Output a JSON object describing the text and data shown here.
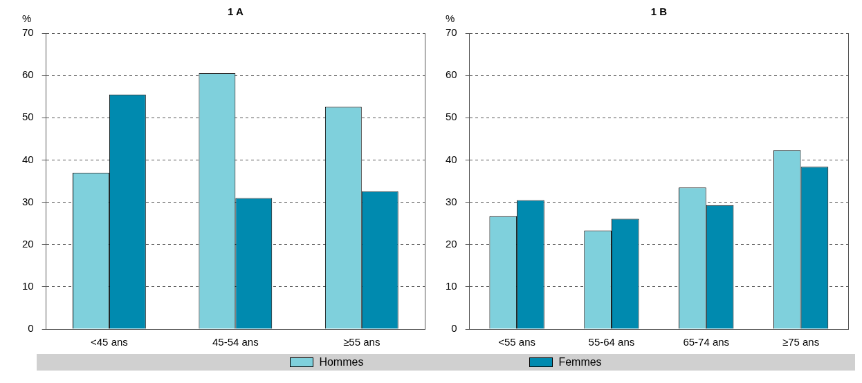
{
  "chart_data": [
    {
      "type": "bar",
      "title": "1 A",
      "ylabel": "%",
      "categories": [
        "<45 ans",
        "45-54 ans",
        "≥55 ans"
      ],
      "series": [
        {
          "name": "Hommes",
          "color": "#7fd0dc",
          "values": [
            37,
            60.5,
            52.6
          ]
        },
        {
          "name": "Femmes",
          "color": "#008aaf",
          "values": [
            55.5,
            31,
            32.6
          ]
        }
      ],
      "ylim": [
        0,
        70
      ],
      "yticks": [
        0,
        10,
        20,
        30,
        40,
        50,
        60,
        70
      ],
      "grid": "y",
      "legend": "bottom"
    },
    {
      "type": "bar",
      "title": "1 B",
      "ylabel": "%",
      "categories": [
        "<55 ans",
        "55-64 ans",
        "65-74 ans",
        "≥75 ans"
      ],
      "series": [
        {
          "color": "#7fd0dc",
          "values": [
            26.7,
            23.3,
            33.5,
            42.3
          ]
        },
        {
          "color": "#008aaf",
          "values": [
            30.5,
            26.1,
            29.3,
            38.4
          ]
        }
      ],
      "ylim": [
        0,
        70
      ],
      "yticks": [
        0,
        10,
        20,
        30,
        40,
        50,
        60,
        70
      ],
      "grid": "y"
    }
  ]
}
